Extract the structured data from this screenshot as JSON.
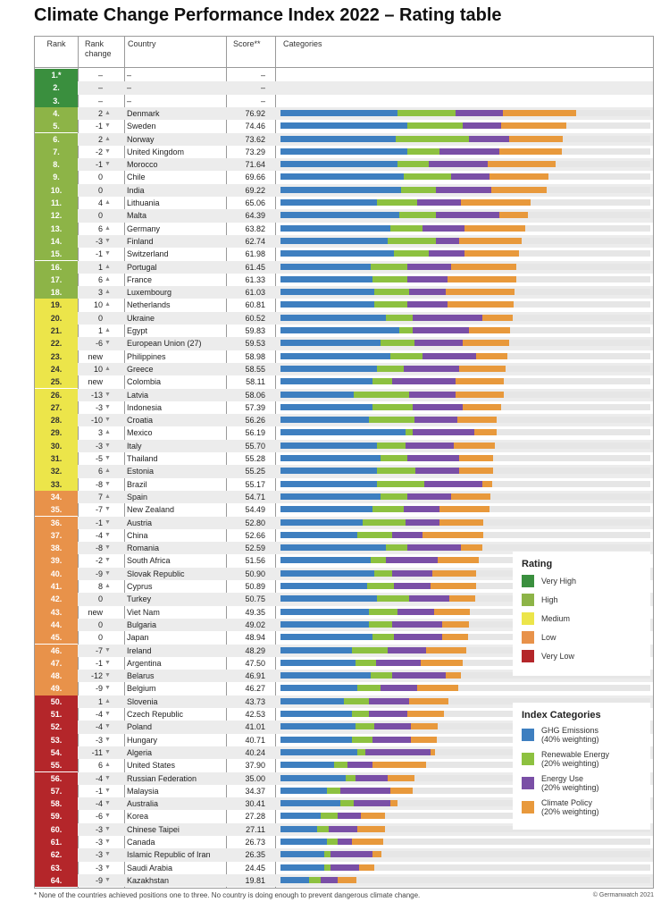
{
  "title": "Climate Change Performance Index 2022 – Rating table",
  "headers": {
    "rank": "Rank",
    "rank_change_1": "Rank",
    "rank_change_2": "change",
    "country": "Country",
    "score": "Score**",
    "categories": "Categories"
  },
  "colors": {
    "very_high": "#3a8f3e",
    "high": "#8db447",
    "medium": "#ece54a",
    "low": "#e8924a",
    "very_low": "#b4262a",
    "ghg": "#3e7fc0",
    "renewable": "#8dc140",
    "energy": "#7a4fa6",
    "policy": "#e8993c"
  },
  "legend_rating": {
    "title": "Rating",
    "items": [
      "Very High",
      "High",
      "Medium",
      "Low",
      "Very Low"
    ]
  },
  "legend_categories": {
    "title": "Index Categories",
    "items": [
      {
        "l1": "GHG Emissions",
        "l2": "(40% weighting)"
      },
      {
        "l1": "Renewable Energy",
        "l2": "(20% weighting)"
      },
      {
        "l1": "Energy Use",
        "l2": "(20% weighting)"
      },
      {
        "l1": "Climate Policy",
        "l2": "(20% weighting)"
      }
    ]
  },
  "footnote": "* None of the countries achieved positions one to three. No country is doing enough to prevent dangerous climate change.",
  "copyright": "© Germanwatch 2021",
  "chart_data": {
    "type": "table",
    "columns": [
      "Rank",
      "Rank change",
      "Country",
      "Score**",
      "GHG Emissions",
      "Renewable Energy",
      "Energy Use",
      "Climate Policy"
    ],
    "rows": [
      {
        "rank": "1.*",
        "change": "–",
        "dir": "",
        "country": "–",
        "score": "–",
        "rating": "very_high",
        "ghg": 0,
        "ren": 0,
        "en": 0,
        "pol": 0
      },
      {
        "rank": "2.",
        "change": "–",
        "dir": "",
        "country": "–",
        "score": "–",
        "rating": "very_high",
        "ghg": 0,
        "ren": 0,
        "en": 0,
        "pol": 0
      },
      {
        "rank": "3.",
        "change": "–",
        "dir": "",
        "country": "–",
        "score": "–",
        "rating": "very_high",
        "ghg": 0,
        "ren": 0,
        "en": 0,
        "pol": 0
      },
      {
        "rank": "4.",
        "change": "2",
        "dir": "up",
        "country": "Denmark",
        "score": "76.92",
        "rating": "high",
        "ghg": 30.5,
        "ren": 15.0,
        "en": 12.5,
        "pol": 18.9
      },
      {
        "rank": "5.",
        "change": "-1",
        "dir": "down",
        "country": "Sweden",
        "score": "74.46",
        "rating": "high",
        "ghg": 33.0,
        "ren": 14.5,
        "en": 10.0,
        "pol": 17.0
      },
      {
        "rank": "6.",
        "change": "2",
        "dir": "up",
        "country": "Norway",
        "score": "73.62",
        "rating": "high",
        "ghg": 30.0,
        "ren": 19.0,
        "en": 10.5,
        "pol": 14.1
      },
      {
        "rank": "7.",
        "change": "-2",
        "dir": "down",
        "country": "United Kingdom",
        "score": "73.29",
        "rating": "high",
        "ghg": 33.0,
        "ren": 8.5,
        "en": 15.5,
        "pol": 16.3
      },
      {
        "rank": "8.",
        "change": "-1",
        "dir": "down",
        "country": "Morocco",
        "score": "71.64",
        "rating": "high",
        "ghg": 30.5,
        "ren": 8.0,
        "en": 15.5,
        "pol": 17.6
      },
      {
        "rank": "9.",
        "change": "0",
        "dir": "none",
        "country": "Chile",
        "score": "69.66",
        "rating": "high",
        "ghg": 32.0,
        "ren": 12.5,
        "en": 10.0,
        "pol": 15.2
      },
      {
        "rank": "10.",
        "change": "0",
        "dir": "none",
        "country": "India",
        "score": "69.22",
        "rating": "high",
        "ghg": 31.5,
        "ren": 9.0,
        "en": 14.5,
        "pol": 14.2
      },
      {
        "rank": "11.",
        "change": "4",
        "dir": "up",
        "country": "Lithuania",
        "score": "65.06",
        "rating": "high",
        "ghg": 25.0,
        "ren": 10.5,
        "en": 11.5,
        "pol": 18.1
      },
      {
        "rank": "12.",
        "change": "0",
        "dir": "none",
        "country": "Malta",
        "score": "64.39",
        "rating": "high",
        "ghg": 31.0,
        "ren": 9.5,
        "en": 16.5,
        "pol": 7.4
      },
      {
        "rank": "13.",
        "change": "6",
        "dir": "up",
        "country": "Germany",
        "score": "63.82",
        "rating": "high",
        "ghg": 28.5,
        "ren": 8.5,
        "en": 11.0,
        "pol": 15.8
      },
      {
        "rank": "14.",
        "change": "-3",
        "dir": "down",
        "country": "Finland",
        "score": "62.74",
        "rating": "high",
        "ghg": 28.0,
        "ren": 12.5,
        "en": 6.0,
        "pol": 16.2
      },
      {
        "rank": "15.",
        "change": "-1",
        "dir": "down",
        "country": "Switzerland",
        "score": "61.98",
        "rating": "high",
        "ghg": 29.5,
        "ren": 9.0,
        "en": 9.5,
        "pol": 14.0
      },
      {
        "rank": "16.",
        "change": "1",
        "dir": "up",
        "country": "Portugal",
        "score": "61.45",
        "rating": "high",
        "ghg": 23.5,
        "ren": 9.5,
        "en": 11.5,
        "pol": 16.9
      },
      {
        "rank": "17.",
        "change": "6",
        "dir": "up",
        "country": "France",
        "score": "61.33",
        "rating": "high",
        "ghg": 24.0,
        "ren": 9.0,
        "en": 10.5,
        "pol": 17.8
      },
      {
        "rank": "18.",
        "change": "3",
        "dir": "up",
        "country": "Luxembourg",
        "score": "61.03",
        "rating": "high",
        "ghg": 24.5,
        "ren": 9.0,
        "en": 9.5,
        "pol": 18.0
      },
      {
        "rank": "19.",
        "change": "10",
        "dir": "up",
        "country": "Netherlands",
        "score": "60.81",
        "rating": "medium",
        "ghg": 24.5,
        "ren": 8.5,
        "en": 10.5,
        "pol": 17.3
      },
      {
        "rank": "20.",
        "change": "0",
        "dir": "none",
        "country": "Ukraine",
        "score": "60.52",
        "rating": "medium",
        "ghg": 27.5,
        "ren": 7.0,
        "en": 18.0,
        "pol": 8.0
      },
      {
        "rank": "21.",
        "change": "1",
        "dir": "up",
        "country": "Egypt",
        "score": "59.83",
        "rating": "medium",
        "ghg": 31.0,
        "ren": 3.5,
        "en": 14.5,
        "pol": 10.8
      },
      {
        "rank": "22.",
        "change": "-6",
        "dir": "down",
        "country": "European Union (27)",
        "score": "59.53",
        "rating": "medium",
        "ghg": 26.0,
        "ren": 9.0,
        "en": 12.5,
        "pol": 12.0
      },
      {
        "rank": "23.",
        "change": "new",
        "dir": "",
        "country": "Philippines",
        "score": "58.98",
        "rating": "medium",
        "ghg": 28.5,
        "ren": 8.5,
        "en": 14.0,
        "pol": 8.0
      },
      {
        "rank": "24.",
        "change": "10",
        "dir": "up",
        "country": "Greece",
        "score": "58.55",
        "rating": "medium",
        "ghg": 25.0,
        "ren": 7.0,
        "en": 14.5,
        "pol": 12.1
      },
      {
        "rank": "25.",
        "change": "new",
        "dir": "",
        "country": "Colombia",
        "score": "58.11",
        "rating": "medium",
        "ghg": 24.0,
        "ren": 5.0,
        "en": 16.5,
        "pol": 12.6
      },
      {
        "rank": "26.",
        "change": "-13",
        "dir": "down",
        "country": "Latvia",
        "score": "58.06",
        "rating": "medium",
        "ghg": 19.0,
        "ren": 14.5,
        "en": 12.0,
        "pol": 12.6
      },
      {
        "rank": "27.",
        "change": "-3",
        "dir": "down",
        "country": "Indonesia",
        "score": "57.39",
        "rating": "medium",
        "ghg": 24.0,
        "ren": 10.5,
        "en": 13.0,
        "pol": 9.9
      },
      {
        "rank": "28.",
        "change": "-10",
        "dir": "down",
        "country": "Croatia",
        "score": "56.26",
        "rating": "medium",
        "ghg": 23.0,
        "ren": 12.0,
        "en": 11.0,
        "pol": 10.3
      },
      {
        "rank": "29.",
        "change": "3",
        "dir": "up",
        "country": "Mexico",
        "score": "56.19",
        "rating": "medium",
        "ghg": 32.5,
        "ren": 2.0,
        "en": 16.0,
        "pol": 5.7
      },
      {
        "rank": "30.",
        "change": "-3",
        "dir": "down",
        "country": "Italy",
        "score": "55.70",
        "rating": "medium",
        "ghg": 25.0,
        "ren": 7.5,
        "en": 12.5,
        "pol": 10.7
      },
      {
        "rank": "31.",
        "change": "-5",
        "dir": "down",
        "country": "Thailand",
        "score": "55.28",
        "rating": "medium",
        "ghg": 26.0,
        "ren": 7.0,
        "en": 13.5,
        "pol": 8.8
      },
      {
        "rank": "32.",
        "change": "6",
        "dir": "up",
        "country": "Estonia",
        "score": "55.25",
        "rating": "medium",
        "ghg": 25.0,
        "ren": 10.0,
        "en": 11.5,
        "pol": 8.8
      },
      {
        "rank": "33.",
        "change": "-8",
        "dir": "down",
        "country": "Brazil",
        "score": "55.17",
        "rating": "medium",
        "ghg": 25.0,
        "ren": 12.5,
        "en": 15.0,
        "pol": 2.7
      },
      {
        "rank": "34.",
        "change": "7",
        "dir": "up",
        "country": "Spain",
        "score": "54.71",
        "rating": "low",
        "ghg": 26.0,
        "ren": 7.0,
        "en": 11.5,
        "pol": 10.2
      },
      {
        "rank": "35.",
        "change": "-7",
        "dir": "down",
        "country": "New Zealand",
        "score": "54.49",
        "rating": "low",
        "ghg": 24.0,
        "ren": 8.0,
        "en": 9.5,
        "pol": 13.0
      },
      {
        "rank": "36.",
        "change": "-1",
        "dir": "down",
        "country": "Austria",
        "score": "52.80",
        "rating": "low",
        "ghg": 21.5,
        "ren": 11.0,
        "en": 9.0,
        "pol": 11.3
      },
      {
        "rank": "37.",
        "change": "-4",
        "dir": "down",
        "country": "China",
        "score": "52.66",
        "rating": "low",
        "ghg": 20.0,
        "ren": 9.0,
        "en": 8.0,
        "pol": 15.7
      },
      {
        "rank": "38.",
        "change": "-8",
        "dir": "down",
        "country": "Romania",
        "score": "52.59",
        "rating": "low",
        "ghg": 27.5,
        "ren": 5.5,
        "en": 14.0,
        "pol": 5.6
      },
      {
        "rank": "39.",
        "change": "-2",
        "dir": "down",
        "country": "South Africa",
        "score": "51.56",
        "rating": "low",
        "ghg": 23.5,
        "ren": 4.0,
        "en": 13.5,
        "pol": 10.6
      },
      {
        "rank": "40.",
        "change": "-9",
        "dir": "down",
        "country": "Slovak Republic",
        "score": "50.90",
        "rating": "low",
        "ghg": 24.5,
        "ren": 4.5,
        "en": 10.5,
        "pol": 11.4
      },
      {
        "rank": "41.",
        "change": "8",
        "dir": "up",
        "country": "Cyprus",
        "score": "50.89",
        "rating": "low",
        "ghg": 22.5,
        "ren": 7.0,
        "en": 9.5,
        "pol": 11.9
      },
      {
        "rank": "42.",
        "change": "0",
        "dir": "none",
        "country": "Turkey",
        "score": "50.75",
        "rating": "low",
        "ghg": 25.0,
        "ren": 8.5,
        "en": 10.5,
        "pol": 6.8
      },
      {
        "rank": "43.",
        "change": "new",
        "dir": "",
        "country": "Viet Nam",
        "score": "49.35",
        "rating": "low",
        "ghg": 23.0,
        "ren": 7.5,
        "en": 9.5,
        "pol": 9.4
      },
      {
        "rank": "44.",
        "change": "0",
        "dir": "none",
        "country": "Bulgaria",
        "score": "49.02",
        "rating": "low",
        "ghg": 23.0,
        "ren": 6.0,
        "en": 13.0,
        "pol": 7.0
      },
      {
        "rank": "45.",
        "change": "0",
        "dir": "none",
        "country": "Japan",
        "score": "48.94",
        "rating": "low",
        "ghg": 24.0,
        "ren": 5.5,
        "en": 12.5,
        "pol": 6.9
      },
      {
        "rank": "46.",
        "change": "-7",
        "dir": "down",
        "country": "Ireland",
        "score": "48.29",
        "rating": "low",
        "ghg": 18.5,
        "ren": 9.5,
        "en": 10.0,
        "pol": 10.3
      },
      {
        "rank": "47.",
        "change": "-1",
        "dir": "down",
        "country": "Argentina",
        "score": "47.50",
        "rating": "low",
        "ghg": 19.5,
        "ren": 5.5,
        "en": 11.5,
        "pol": 11.0
      },
      {
        "rank": "48.",
        "change": "-12",
        "dir": "down",
        "country": "Belarus",
        "score": "46.91",
        "rating": "low",
        "ghg": 23.5,
        "ren": 5.5,
        "en": 14.0,
        "pol": 3.9
      },
      {
        "rank": "49.",
        "change": "-9",
        "dir": "down",
        "country": "Belgium",
        "score": "46.27",
        "rating": "low",
        "ghg": 20.0,
        "ren": 6.0,
        "en": 9.5,
        "pol": 10.8
      },
      {
        "rank": "50.",
        "change": "1",
        "dir": "up",
        "country": "Slovenia",
        "score": "43.73",
        "rating": "very_low",
        "ghg": 16.5,
        "ren": 6.5,
        "en": 10.5,
        "pol": 10.2
      },
      {
        "rank": "51.",
        "change": "-4",
        "dir": "down",
        "country": "Czech Republic",
        "score": "42.53",
        "rating": "very_low",
        "ghg": 18.5,
        "ren": 4.5,
        "en": 10.0,
        "pol": 9.5
      },
      {
        "rank": "52.",
        "change": "-4",
        "dir": "down",
        "country": "Poland",
        "score": "41.01",
        "rating": "very_low",
        "ghg": 19.5,
        "ren": 5.0,
        "en": 9.5,
        "pol": 7.0
      },
      {
        "rank": "53.",
        "change": "-3",
        "dir": "down",
        "country": "Hungary",
        "score": "40.71",
        "rating": "very_low",
        "ghg": 18.5,
        "ren": 5.5,
        "en": 10.0,
        "pol": 6.7
      },
      {
        "rank": "54.",
        "change": "-11",
        "dir": "down",
        "country": "Algeria",
        "score": "40.24",
        "rating": "very_low",
        "ghg": 20.0,
        "ren": 2.0,
        "en": 17.0,
        "pol": 1.2
      },
      {
        "rank": "55.",
        "change": "6",
        "dir": "up",
        "country": "United States",
        "score": "37.90",
        "rating": "very_low",
        "ghg": 14.0,
        "ren": 3.5,
        "en": 6.5,
        "pol": 13.9
      },
      {
        "rank": "56.",
        "change": "-4",
        "dir": "down",
        "country": "Russian Federation",
        "score": "35.00",
        "rating": "very_low",
        "ghg": 17.0,
        "ren": 2.5,
        "en": 8.5,
        "pol": 7.0
      },
      {
        "rank": "57.",
        "change": "-1",
        "dir": "down",
        "country": "Malaysia",
        "score": "34.37",
        "rating": "very_low",
        "ghg": 12.0,
        "ren": 3.5,
        "en": 13.0,
        "pol": 5.9
      },
      {
        "rank": "58.",
        "change": "-4",
        "dir": "down",
        "country": "Australia",
        "score": "30.41",
        "rating": "very_low",
        "ghg": 15.5,
        "ren": 3.5,
        "en": 9.5,
        "pol": 1.9
      },
      {
        "rank": "59.",
        "change": "-6",
        "dir": "down",
        "country": "Korea",
        "score": "27.28",
        "rating": "very_low",
        "ghg": 10.5,
        "ren": 4.5,
        "en": 6.0,
        "pol": 6.3
      },
      {
        "rank": "60.",
        "change": "-3",
        "dir": "down",
        "country": "Chinese Taipei",
        "score": "27.11",
        "rating": "very_low",
        "ghg": 9.5,
        "ren": 3.0,
        "en": 7.5,
        "pol": 7.1
      },
      {
        "rank": "61.",
        "change": "-3",
        "dir": "down",
        "country": "Canada",
        "score": "26.73",
        "rating": "very_low",
        "ghg": 12.0,
        "ren": 3.0,
        "en": 3.5,
        "pol": 8.2
      },
      {
        "rank": "62.",
        "change": "-3",
        "dir": "down",
        "country": "Islamic Republic of Iran",
        "score": "26.35",
        "rating": "very_low",
        "ghg": 11.5,
        "ren": 1.5,
        "en": 11.0,
        "pol": 2.4
      },
      {
        "rank": "63.",
        "change": "-3",
        "dir": "down",
        "country": "Saudi Arabia",
        "score": "24.45",
        "rating": "very_low",
        "ghg": 11.5,
        "ren": 1.5,
        "en": 7.5,
        "pol": 4.0
      },
      {
        "rank": "64.",
        "change": "-9",
        "dir": "down",
        "country": "Kazakhstan",
        "score": "19.81",
        "rating": "very_low",
        "ghg": 7.5,
        "ren": 3.0,
        "en": 4.5,
        "pol": 4.8
      }
    ]
  }
}
